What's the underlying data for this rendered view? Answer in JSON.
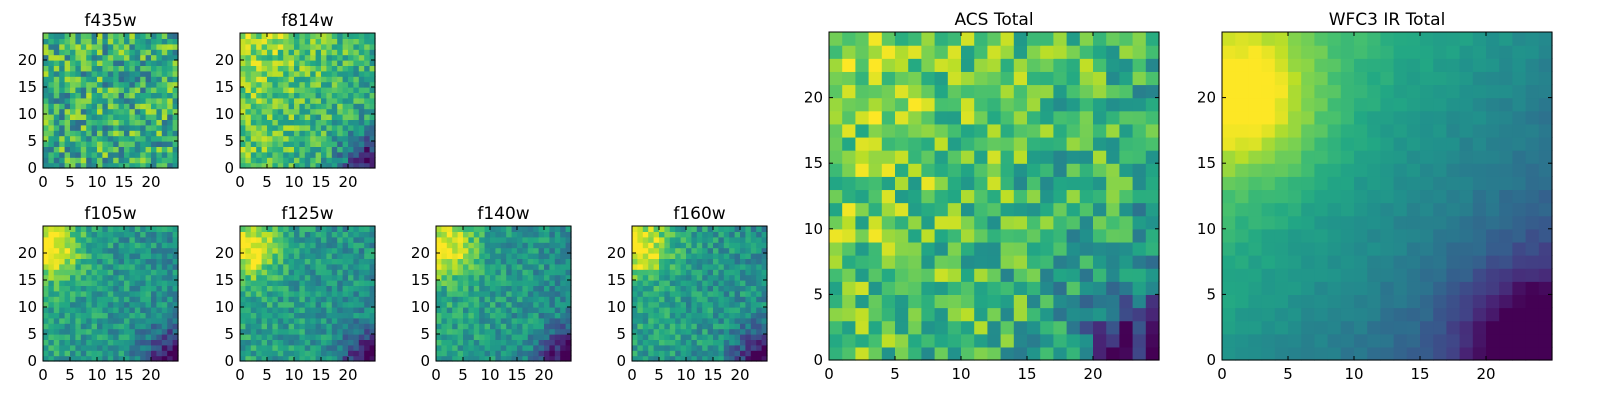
{
  "chart_data": [
    {
      "type": "heatmap",
      "title": "f435w",
      "x_range": [
        0,
        25
      ],
      "y_range": [
        0,
        25
      ],
      "grid_size": 25,
      "xticks": [
        0,
        5,
        10,
        15,
        20
      ],
      "yticks": [
        0,
        5,
        10,
        15,
        20
      ],
      "colormap": "viridis",
      "pattern": "noisy uniform",
      "seed": 11
    },
    {
      "type": "heatmap",
      "title": "f814w",
      "x_range": [
        0,
        25
      ],
      "y_range": [
        0,
        25
      ],
      "grid_size": 25,
      "xticks": [
        0,
        5,
        10,
        15,
        20
      ],
      "yticks": [
        0,
        5,
        10,
        15,
        20
      ],
      "colormap": "viridis",
      "pattern": "bright upper-left, dark lower-right",
      "seed": 23
    },
    {
      "type": "heatmap",
      "title": "f105w",
      "x_range": [
        0,
        25
      ],
      "y_range": [
        0,
        25
      ],
      "grid_size": 25,
      "xticks": [
        0,
        5,
        10,
        15,
        20
      ],
      "yticks": [
        0,
        5,
        10,
        15,
        20
      ],
      "colormap": "viridis",
      "pattern": "bright upper-left, dark lower-right",
      "seed": 37
    },
    {
      "type": "heatmap",
      "title": "f125w",
      "x_range": [
        0,
        25
      ],
      "y_range": [
        0,
        25
      ],
      "grid_size": 25,
      "xticks": [
        0,
        5,
        10,
        15,
        20
      ],
      "yticks": [
        0,
        5,
        10,
        15,
        20
      ],
      "colormap": "viridis",
      "pattern": "bright upper-left, dark lower-right",
      "seed": 41
    },
    {
      "type": "heatmap",
      "title": "f140w",
      "x_range": [
        0,
        25
      ],
      "y_range": [
        0,
        25
      ],
      "grid_size": 25,
      "xticks": [
        0,
        5,
        10,
        15,
        20
      ],
      "yticks": [
        0,
        5,
        10,
        15,
        20
      ],
      "colormap": "viridis",
      "pattern": "bright upper-left, dark lower-right",
      "seed": 53
    },
    {
      "type": "heatmap",
      "title": "f160w",
      "x_range": [
        0,
        25
      ],
      "y_range": [
        0,
        25
      ],
      "grid_size": 25,
      "xticks": [
        0,
        5,
        10,
        15,
        20
      ],
      "yticks": [
        0,
        5,
        10,
        15,
        20
      ],
      "colormap": "viridis",
      "pattern": "bright upper-left, dark lower-right",
      "seed": 67
    },
    {
      "type": "heatmap",
      "title": "ACS Total",
      "x_range": [
        0,
        25
      ],
      "y_range": [
        0,
        25
      ],
      "grid_size": 25,
      "xticks": [
        0,
        5,
        10,
        15,
        20
      ],
      "yticks": [
        0,
        5,
        10,
        15,
        20
      ],
      "colormap": "viridis",
      "pattern": "noisy, bright upper-left, dark lower-right",
      "seed": 79
    },
    {
      "type": "heatmap",
      "title": "WFC3 IR Total",
      "x_range": [
        0,
        25
      ],
      "y_range": [
        0,
        25
      ],
      "grid_size": 25,
      "xticks": [
        0,
        5,
        10,
        15,
        20
      ],
      "yticks": [
        0,
        5,
        10,
        15,
        20
      ],
      "colormap": "viridis",
      "pattern": "smooth gradient, bright upper-left, dark lower-right",
      "seed": 97
    }
  ]
}
